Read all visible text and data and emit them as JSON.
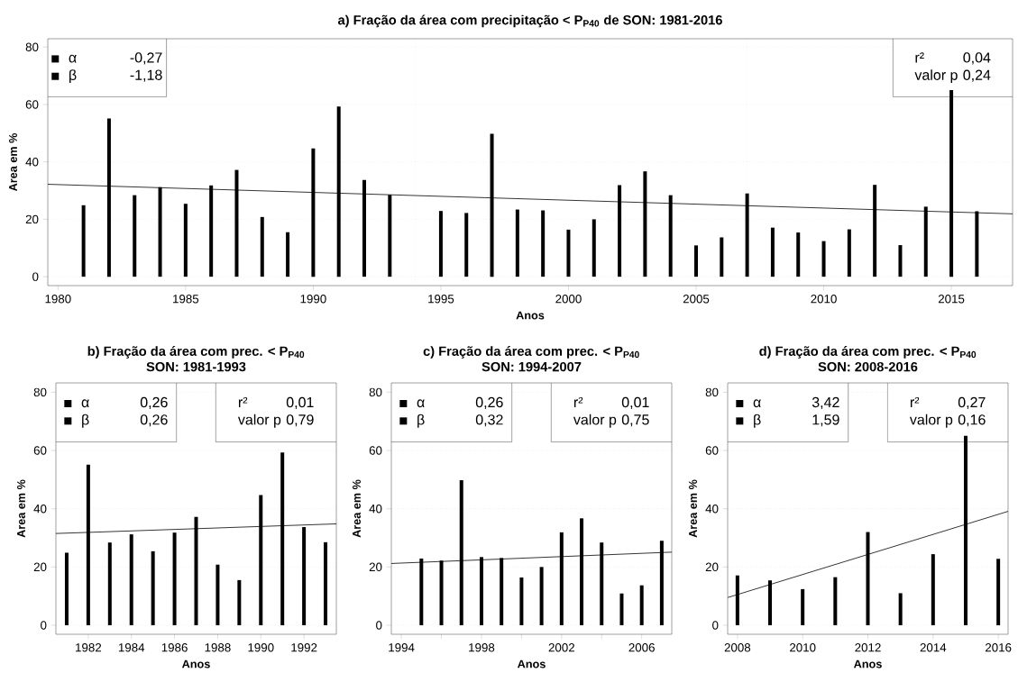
{
  "chart_data": [
    {
      "type": "bar",
      "title": "a) Fração da área com precipitação < P$_{P40}$ de SON: 1981-2016",
      "xlabel": "Anos",
      "ylabel": "Area em %",
      "xlim": [
        1979.6,
        2017.4
      ],
      "ylim": [
        -3.1,
        82.9
      ],
      "xticks": [
        1980,
        1985,
        1990,
        1995,
        2000,
        2005,
        2010,
        2015
      ],
      "yticks": [
        0,
        20,
        40,
        60,
        80
      ],
      "grid": "y",
      "series": [
        {
          "color": "#000000",
          "x": [
            1981,
            1982,
            1983,
            1984,
            1985,
            1986,
            1987,
            1988,
            1989,
            1990,
            1991,
            1992,
            1993,
            1994,
            1995,
            1996,
            1997,
            1998,
            1999,
            2000,
            2001,
            2002,
            2003,
            2004,
            2005,
            2006,
            2007,
            2008,
            2009,
            2010,
            2011,
            2012,
            2013,
            2014,
            2015,
            2016
          ],
          "values": [
            24.9,
            55.1,
            28.4,
            31.2,
            25.4,
            31.8,
            37.2,
            20.8,
            15.5,
            44.7,
            59.3,
            33.7,
            28.5,
            0,
            22.9,
            22.2,
            49.8,
            23.4,
            23.1,
            16.4,
            20.0,
            31.9,
            36.7,
            28.4,
            10.9,
            13.7,
            29.0,
            17.1,
            15.4,
            12.4,
            16.5,
            32.0,
            11.0,
            24.4,
            65,
            22.8
          ]
        },
        {
          "type": "line",
          "color": "#000000",
          "x": [
            1979.6,
            2017.4
          ],
          "values": [
            32.2,
            21.9
          ]
        }
      ],
      "ref_lines": [
        {
          "axis": "x",
          "value": 1994,
          "color": "#d9d9d9",
          "line_style": "dotted"
        },
        {
          "axis": "x",
          "value": 2007,
          "color": "#d9d9d9",
          "line_style": "dotted"
        }
      ],
      "annotations": [
        "α",
        "-0,27",
        "β",
        "-1,18",
        "r²",
        "0,04",
        "valor p",
        "0,24"
      ]
    },
    {
      "type": "bar",
      "title": "b) Fração da área com prec. < P$_{P40}$",
      "subtitle": "SON: 1981-1993",
      "xlabel": "Anos",
      "ylabel": "Area em %",
      "xlim": [
        1980.5,
        1993.5
      ],
      "ylim": [
        -3.1,
        83.2
      ],
      "xticks": [
        1982,
        1984,
        1986,
        1988,
        1990,
        1992
      ],
      "yticks": [
        0,
        20,
        40,
        60,
        80
      ],
      "grid": "y",
      "series": [
        {
          "color": "#000000",
          "x": [
            1981,
            1982,
            1983,
            1984,
            1985,
            1986,
            1987,
            1988,
            1989,
            1990,
            1991,
            1992,
            1993
          ],
          "values": [
            24.9,
            55.1,
            28.4,
            31.2,
            25.4,
            31.8,
            37.2,
            20.8,
            15.5,
            44.7,
            59.3,
            33.7,
            28.5
          ]
        },
        {
          "type": "line",
          "color": "#000000",
          "x": [
            1980.5,
            1993.5
          ],
          "values": [
            31.5,
            34.8
          ]
        }
      ],
      "annotations": [
        "α",
        "0,26",
        "β",
        "0,26",
        "r²",
        "0,01",
        "valor p",
        "0,79"
      ]
    },
    {
      "type": "bar",
      "title": "c) Fração da área com prec. < P$_{P40}$",
      "subtitle": "SON: 1994-2007",
      "xlabel": "Anos",
      "ylabel": "Area em %",
      "xlim": [
        1993.5,
        2007.5
      ],
      "ylim": [
        -3.1,
        83.2
      ],
      "xticks": [
        1994,
        {
          "value": 1996,
          "label": null
        },
        1998,
        {
          "value": 2000,
          "label": null
        },
        2002,
        {
          "value": 2004,
          "label": null
        },
        2006
      ],
      "yticks": [
        0,
        20,
        40,
        60,
        80
      ],
      "grid": "y",
      "series": [
        {
          "color": "#000000",
          "x": [
            1994,
            1995,
            1996,
            1997,
            1998,
            1999,
            2000,
            2001,
            2002,
            2003,
            2004,
            2005,
            2006,
            2007
          ],
          "values": [
            0,
            22.9,
            22.2,
            49.8,
            23.4,
            23.1,
            16.4,
            20.0,
            31.9,
            36.7,
            28.4,
            10.9,
            13.7,
            29.0
          ]
        },
        {
          "type": "line",
          "color": "#000000",
          "x": [
            1993.5,
            2007.5
          ],
          "values": [
            21.2,
            25.1
          ]
        }
      ],
      "annotations": [
        "α",
        "0,26",
        "β",
        "0,32",
        "r²",
        "0,01",
        "valor p",
        "0,75"
      ]
    },
    {
      "type": "bar",
      "title": "d) Fração da área com prec. < P$_{P40}$",
      "subtitle": "SON: 2008-2016",
      "xlabel": "Anos",
      "ylabel": "Area em %",
      "xlim": [
        2007.7,
        2016.3
      ],
      "ylim": [
        -3.1,
        83.2
      ],
      "xticks": [
        2008,
        2010,
        2012,
        2014,
        2016
      ],
      "yticks": [
        0,
        20,
        40,
        60,
        80
      ],
      "grid": "y",
      "series": [
        {
          "color": "#000000",
          "x": [
            2008,
            2009,
            2010,
            2011,
            2012,
            2013,
            2014,
            2015,
            2016
          ],
          "values": [
            17.1,
            15.4,
            12.4,
            16.5,
            32.0,
            11.0,
            24.4,
            65,
            22.8
          ]
        },
        {
          "type": "line",
          "color": "#000000",
          "x": [
            2007.7,
            2016.3
          ],
          "values": [
            9.5,
            39.1
          ]
        }
      ],
      "annotations": [
        "α",
        "3,42",
        "β",
        "1,59",
        "r²",
        "0,27",
        "valor p",
        "0,16"
      ]
    }
  ]
}
